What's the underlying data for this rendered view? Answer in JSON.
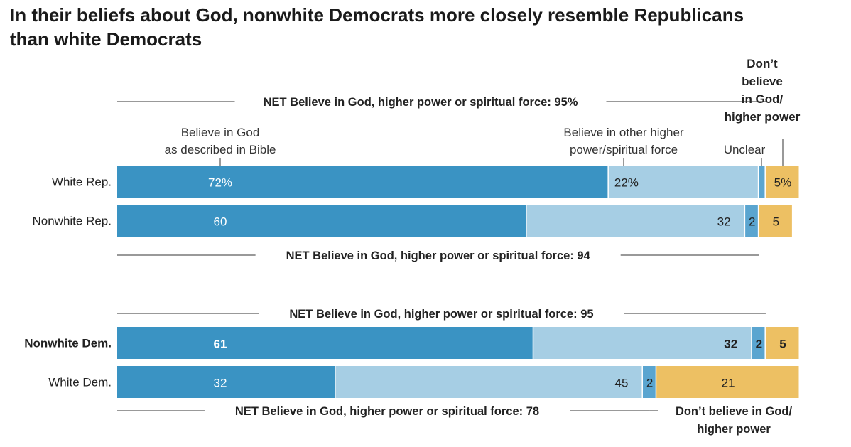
{
  "title_lines": [
    "In their beliefs about God, nonwhite Democrats more closely resemble Republicans",
    "than white Democrats"
  ],
  "colors": {
    "bible": "#3a93c3",
    "other_power": "#a6cee4",
    "unclear": "#5aa5d0",
    "dont_believe": "#edc063",
    "rule": "#333333"
  },
  "category_headers": {
    "bible": [
      "Believe in God",
      "as described in Bible"
    ],
    "other_power": [
      "Believe in other higher",
      "power/spiritual force"
    ],
    "unclear": [
      "Unclear"
    ],
    "dont_believe": [
      "Don’t",
      "believe",
      "in God/",
      "higher power"
    ]
  },
  "footer_note": [
    "Don’t believe in God/",
    "higher power"
  ],
  "chart_data": {
    "type": "bar",
    "orientation": "horizontal",
    "stacked": true,
    "xlim": [
      0,
      100
    ],
    "categories": [
      "White Rep.",
      "Nonwhite Rep.",
      "Nonwhite Dem.",
      "White Dem."
    ],
    "emphasized_category": "Nonwhite Dem.",
    "series": [
      {
        "name": "Believe in God as described in Bible",
        "values": [
          72,
          60,
          61,
          32
        ]
      },
      {
        "name": "Believe in other higher power/spiritual force",
        "values": [
          22,
          32,
          32,
          45
        ]
      },
      {
        "name": "Unclear",
        "values": [
          1,
          2,
          2,
          2
        ]
      },
      {
        "name": "Don’t believe in God/ higher power",
        "values": [
          5,
          5,
          5,
          21
        ]
      }
    ],
    "value_labels": [
      [
        "72%",
        "22%",
        "",
        "5%"
      ],
      [
        "60",
        "32",
        "2",
        "5"
      ],
      [
        "61",
        "32",
        "2",
        "5"
      ],
      [
        "32",
        "45",
        "2",
        "21"
      ]
    ],
    "net_annotations": [
      {
        "text": "NET Believe in God, higher power or spiritual force: 95%",
        "value": 95
      },
      {
        "text": "NET Believe in God, higher power or spiritual force: 94",
        "value": 94
      },
      {
        "text": "NET Believe in God, higher power or spiritual force: 95",
        "value": 95
      },
      {
        "text": "NET Believe in God, higher power or spiritual force: 78",
        "value": 78
      }
    ]
  }
}
